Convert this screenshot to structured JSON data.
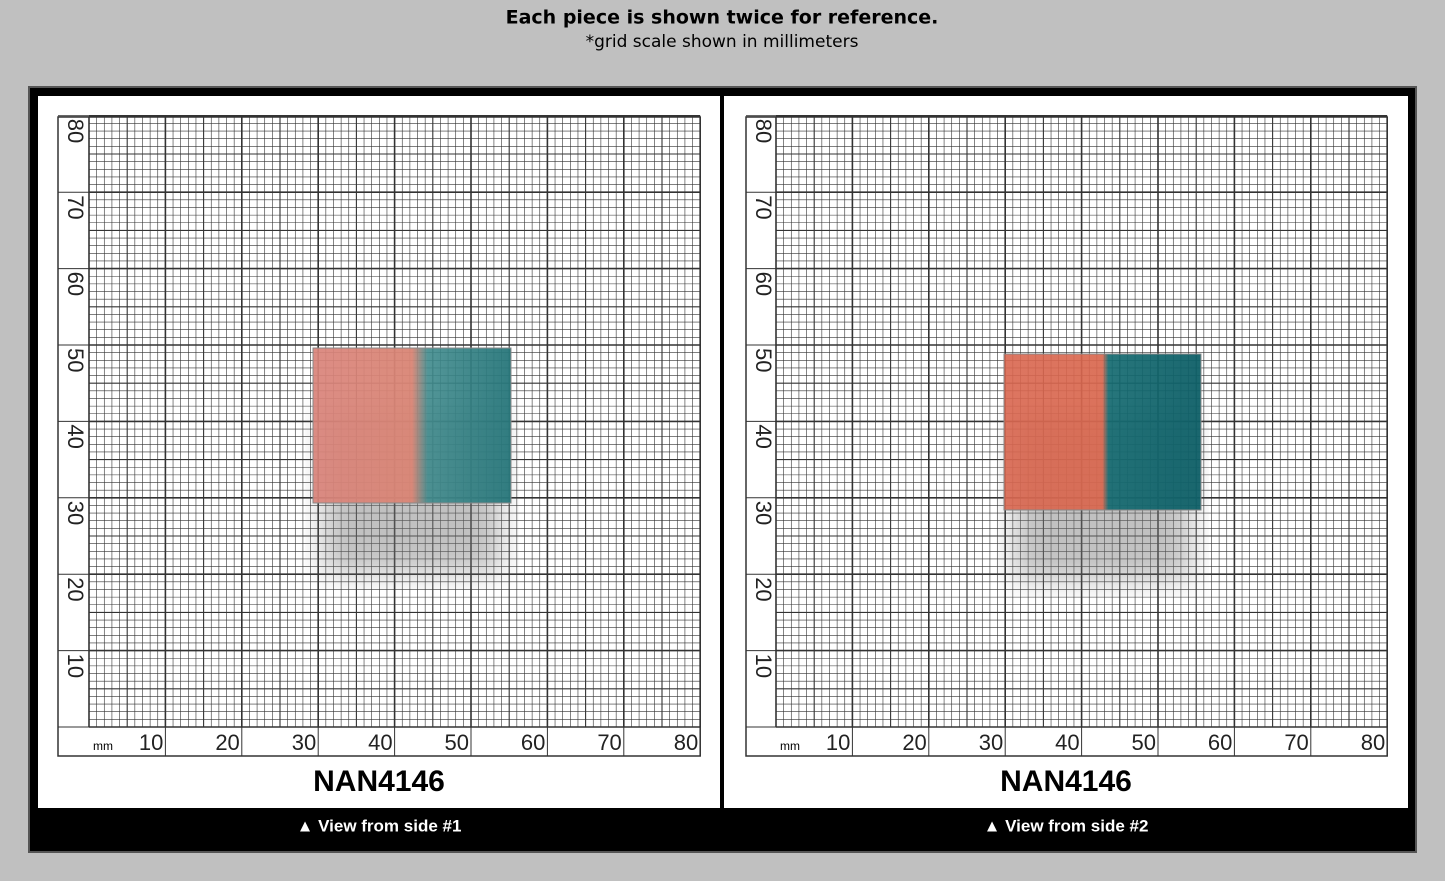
{
  "header": {
    "title": "Each piece is shown twice for reference.",
    "subtitle": "*grid scale shown in millimeters"
  },
  "panels": [
    {
      "unit": "mm",
      "x_labels": [
        "10",
        "20",
        "30",
        "40",
        "50",
        "60",
        "70",
        "80"
      ],
      "y_labels": [
        "10",
        "20",
        "30",
        "40",
        "50",
        "60",
        "70",
        "80"
      ],
      "name": "NAN4146",
      "caption": "▲ View from side #1"
    },
    {
      "unit": "mm",
      "x_labels": [
        "10",
        "20",
        "30",
        "40",
        "50",
        "60",
        "70",
        "80"
      ],
      "y_labels": [
        "10",
        "20",
        "30",
        "40",
        "50",
        "60",
        "70",
        "80"
      ],
      "name": "NAN4146",
      "caption": "▲ View from side #2"
    }
  ]
}
